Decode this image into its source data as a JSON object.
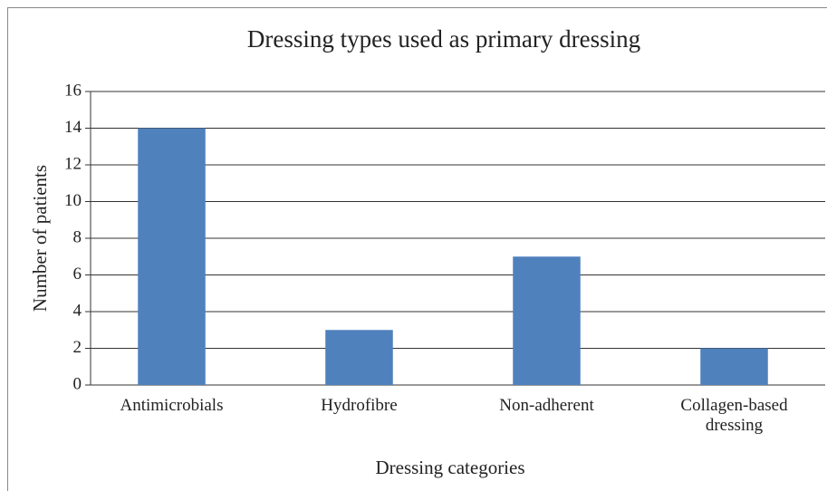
{
  "chart_data": {
    "type": "bar",
    "title": "Dressing types used as primary dressing",
    "x_label": "Dressing categories",
    "y_label": "Number of patients",
    "categories": [
      "Antimicrobials",
      "Hydrofibre",
      "Non-adherent",
      "Collagen-based dressing"
    ],
    "values": [
      14,
      3,
      7,
      2
    ],
    "color": "#4f81bd",
    "ylim": [
      0,
      16
    ],
    "yticks": [
      0,
      2,
      4,
      6,
      8,
      10,
      12,
      14,
      16
    ],
    "grid": true
  }
}
